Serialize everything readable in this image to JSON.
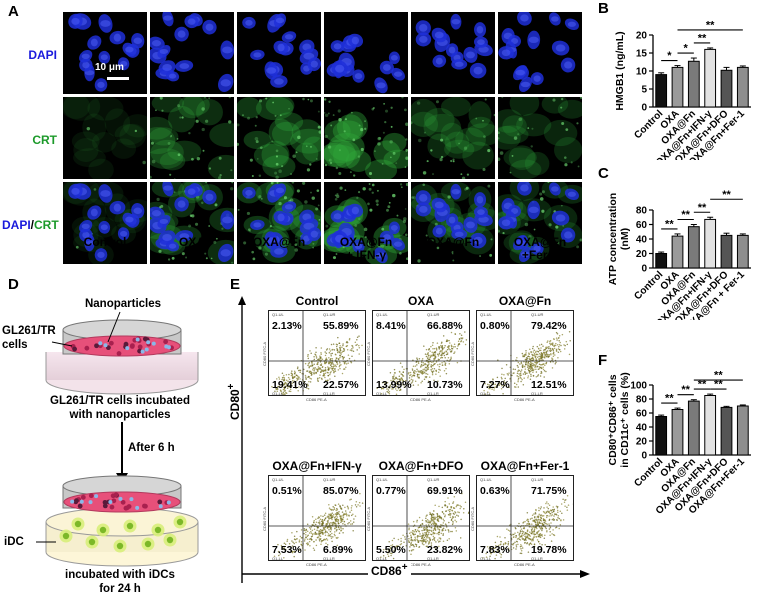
{
  "panels": {
    "A": "A",
    "B": "B",
    "C": "C",
    "D": "D",
    "E": "E",
    "F": "F"
  },
  "panel_a": {
    "rows": [
      {
        "parts": [
          {
            "t": "DAPI",
            "c": "#1a1adc"
          }
        ]
      },
      {
        "parts": [
          {
            "t": "CRT",
            "c": "#1c9a2a"
          }
        ]
      },
      {
        "parts": [
          {
            "t": "DAPI",
            "c": "#1a1adc"
          },
          {
            "t": "/",
            "c": "#000000"
          },
          {
            "t": "CRT",
            "c": "#1c9a2a"
          }
        ]
      }
    ],
    "scale_bar": "10 μm",
    "columns": [
      {
        "l1": "Control",
        "l2": ""
      },
      {
        "l1": "OXA",
        "l2": ""
      },
      {
        "l1": "OXA@Fn",
        "l2": ""
      },
      {
        "l1": "OXA@Fn",
        "l2": "+ IFN-γ"
      },
      {
        "l1": "OXA@Fn",
        "l2": "+DFO"
      },
      {
        "l1": "OXA@Fn",
        "l2": "+Fer-1"
      }
    ],
    "cell_densities": [
      0,
      1,
      1,
      1,
      1,
      1
    ],
    "crt_levels": [
      0.05,
      0.55,
      0.7,
      0.9,
      0.45,
      0.4
    ]
  },
  "panel_d": {
    "nanoparticles": "Nanoparticles",
    "cells_l1": "GL261/TR",
    "cells_l2": "cells",
    "caption1_l1": "GL261/TR cells incubated",
    "caption1_l2": "with nanoparticles",
    "after": "After 6 h",
    "idc": "iDC",
    "caption2_l1": "incubated with iDCs",
    "caption2_l2": "for 24 h"
  },
  "panel_e": {
    "y_axis": "CD80",
    "x_axis": "CD86",
    "plus": "+",
    "tiny": {
      "ul": "Q1-UL",
      "ur": "Q1-UR",
      "ll": "Q1-LL",
      "lr": "Q1-LR",
      "y": "CD80 FITC-A",
      "x": "CD86 PE-A"
    },
    "plots": [
      {
        "title": "Control",
        "ul": "2.13%",
        "ur": "55.89%",
        "ll": "19.41%",
        "lr": "22.57%"
      },
      {
        "title": "OXA",
        "ul": "8.41%",
        "ur": "66.88%",
        "ll": "13.99%",
        "lr": "10.73%"
      },
      {
        "title": "OXA@Fn",
        "ul": "0.80%",
        "ur": "79.42%",
        "ll": "7.27%",
        "lr": "12.51%"
      },
      {
        "title": "OXA@Fn+IFN-γ",
        "ul": "0.51%",
        "ur": "85.07%",
        "ll": "7.53%",
        "lr": "6.89%"
      },
      {
        "title": "OXA@Fn+DFO",
        "ul": "0.77%",
        "ur": "69.91%",
        "ll": "5.50%",
        "lr": "23.82%"
      },
      {
        "title": "OXA@Fn+Fer-1",
        "ul": "0.63%",
        "ur": "71.75%",
        "ll": "7.83%",
        "lr": "19.78%"
      }
    ]
  },
  "chart_data": [
    {
      "type": "bar",
      "panel": "B",
      "categories": [
        "Control",
        "OXA",
        "OXA@Fn",
        "OXA@Fn+IFN-γ",
        "OXA@Fn+DFO",
        "OXA@Fn+Fer-1"
      ],
      "values": [
        9,
        11,
        12.7,
        16,
        10.2,
        11
      ],
      "errors": [
        0.5,
        0.5,
        0.9,
        0.4,
        0.8,
        0.4
      ],
      "colors": [
        "#111111",
        "#9a9a9a",
        "#7a7a7a",
        "#e2e2e2",
        "#555555",
        "#8e8e8e"
      ],
      "ylabel": "HMGB1 (ng/mL)",
      "ylim": [
        0,
        20
      ],
      "yticks": [
        0,
        5,
        10,
        15,
        20
      ],
      "significance": [
        {
          "from": 0,
          "to": 1,
          "label": "*"
        },
        {
          "from": 1,
          "to": 2,
          "label": "*"
        },
        {
          "from": 2,
          "to": 3,
          "label": "**"
        },
        {
          "from": 1,
          "to": 5,
          "label": "**"
        }
      ]
    },
    {
      "type": "bar",
      "panel": "C",
      "categories": [
        "Control",
        "OXA",
        "OXA@Fn",
        "OXA@Fn+IFN-γ",
        "OXA@Fn+DFO",
        "OXA@Fn + Fer-1"
      ],
      "values": [
        20,
        44,
        57,
        67,
        45,
        45
      ],
      "errors": [
        2,
        3,
        3,
        3,
        3,
        2
      ],
      "colors": [
        "#111111",
        "#9a9a9a",
        "#7a7a7a",
        "#e2e2e2",
        "#555555",
        "#8e8e8e"
      ],
      "ylabel": "ATP concentration",
      "ylabel2": "(nM)",
      "ylim": [
        0,
        80
      ],
      "yticks": [
        0,
        20,
        40,
        60,
        80
      ],
      "significance": [
        {
          "from": 0,
          "to": 1,
          "label": "**"
        },
        {
          "from": 1,
          "to": 2,
          "label": "**"
        },
        {
          "from": 2,
          "to": 3,
          "label": "**"
        },
        {
          "from": 3,
          "to": 5,
          "label": "**"
        }
      ]
    },
    {
      "type": "bar",
      "panel": "F",
      "categories": [
        "Control",
        "OXA",
        "OXA@Fn",
        "OXA@Fn+IFN-γ",
        "OXA@Fn+DFO",
        "OXA@Fn+Fer-1"
      ],
      "values": [
        55,
        65,
        77,
        85,
        68,
        70
      ],
      "errors": [
        2,
        2,
        2,
        2,
        1.5,
        1.5
      ],
      "colors": [
        "#111111",
        "#9a9a9a",
        "#7a7a7a",
        "#e2e2e2",
        "#555555",
        "#8e8e8e"
      ],
      "ylabel": "CD80⁺CD86⁺ cells",
      "ylabel2": "in CD11c⁺ cells (%)",
      "ylim": [
        0,
        100
      ],
      "yticks": [
        0,
        20,
        40,
        60,
        80,
        100
      ],
      "significance": [
        {
          "from": 0,
          "to": 1,
          "label": "**"
        },
        {
          "from": 1,
          "to": 2,
          "label": "**"
        },
        {
          "from": 2,
          "to": 3,
          "label": "**"
        },
        {
          "from": 3,
          "to": 4,
          "label": "**"
        },
        {
          "from": 2,
          "to": 5,
          "label": "**"
        }
      ]
    }
  ]
}
